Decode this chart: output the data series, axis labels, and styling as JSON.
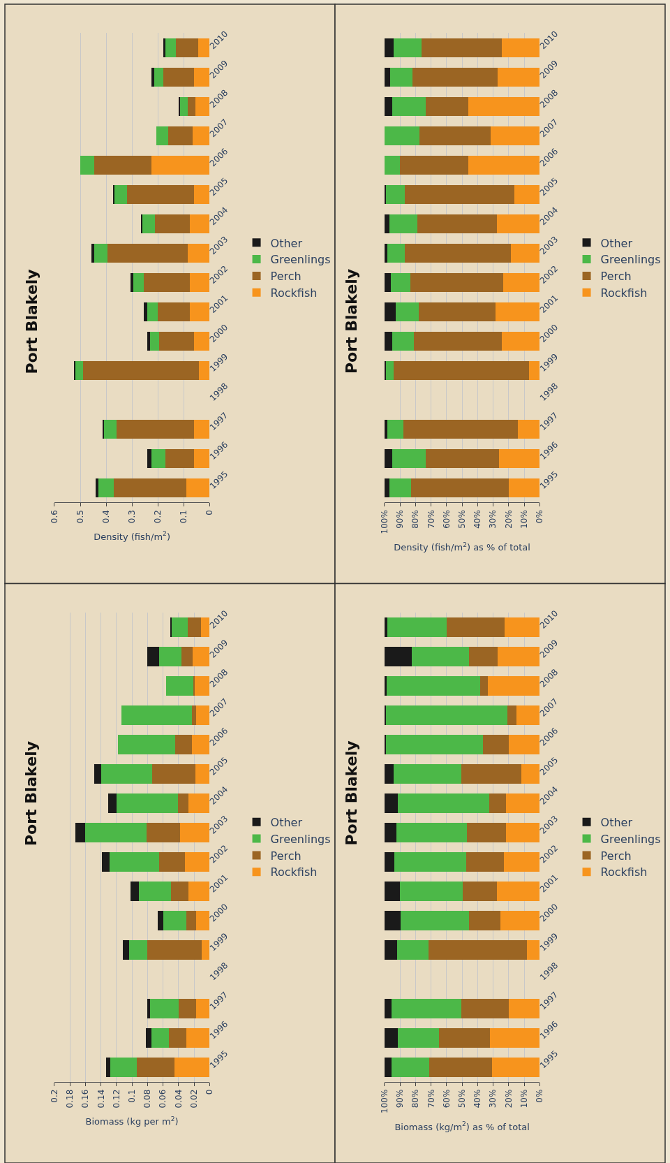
{
  "chart_data": [
    {
      "type": "bar",
      "title": "Port Blakely",
      "xlabel": "Density (fish/m$^{2}$)",
      "orientation": "horizontal",
      "stacked": true,
      "grid": "x",
      "legend": "right",
      "categories": [
        "2010",
        "2009",
        "2008",
        "2007",
        "2006",
        "2005",
        "2004",
        "2003",
        "2002",
        "2001",
        "2000",
        "1999",
        "1998",
        "1997",
        "1996",
        "1995"
      ],
      "xlim": [
        0.6,
        0
      ],
      "xticks": [
        0.6,
        0.5,
        0.4,
        0.3,
        0.2,
        0.1,
        0
      ],
      "series": [
        {
          "name": "Rockfish",
          "color": "#f7941d",
          "values": [
            0.045,
            0.06,
            0.055,
            0.065,
            0.225,
            0.06,
            0.075,
            0.085,
            0.075,
            0.075,
            0.06,
            0.04,
            null,
            0.06,
            0.06,
            0.09
          ]
        },
        {
          "name": "Perch",
          "color": "#9b6523",
          "values": [
            0.085,
            0.12,
            0.03,
            0.095,
            0.22,
            0.26,
            0.135,
            0.31,
            0.18,
            0.125,
            0.135,
            0.45,
            null,
            0.3,
            0.11,
            0.28
          ]
        },
        {
          "name": "Greenlings",
          "color": "#4cb848",
          "values": [
            0.04,
            0.035,
            0.03,
            0.045,
            0.055,
            0.05,
            0.05,
            0.05,
            0.04,
            0.04,
            0.035,
            0.03,
            null,
            0.05,
            0.055,
            0.06
          ]
        },
        {
          "name": "Other",
          "color": "#1a1a1a",
          "values": [
            0.008,
            0.01,
            0.003,
            0,
            0,
            0.001,
            0.005,
            0.012,
            0.01,
            0.015,
            0.01,
            0.003,
            null,
            0.005,
            0.015,
            0.01
          ]
        }
      ]
    },
    {
      "type": "bar",
      "title": "Port Blakely",
      "xlabel": "Density (fish/m$^{2}$) as % of total",
      "orientation": "horizontal",
      "stacked": true,
      "grid": "x",
      "legend": "right",
      "categories": [
        "2010",
        "2009",
        "2008",
        "2007",
        "2006",
        "2005",
        "2004",
        "2003",
        "2002",
        "2001",
        "2000",
        "1999",
        "1998",
        "1997",
        "1996",
        "1995"
      ],
      "xlim": [
        100,
        0
      ],
      "xticks": [
        {
          "value": 100,
          "label": "100%"
        },
        {
          "value": 90,
          "label": "90%"
        },
        {
          "value": 80,
          "label": "80%"
        },
        {
          "value": 70,
          "label": "70%"
        },
        {
          "value": 60,
          "label": "60%"
        },
        {
          "value": 50,
          "label": "50%"
        },
        {
          "value": 40,
          "label": "40%"
        },
        {
          "value": 30,
          "label": "30%"
        },
        {
          "value": 20,
          "label": "20%"
        },
        {
          "value": 10,
          "label": "10%"
        },
        {
          "value": 0,
          "label": "0%"
        }
      ],
      "series": [
        {
          "name": "Rockfish",
          "color": "#f7941d",
          "values": [
            24.5,
            27,
            46,
            31.5,
            46,
            16.5,
            27.5,
            18.5,
            23.5,
            28.5,
            24.5,
            7,
            null,
            14,
            26,
            20
          ]
        },
        {
          "name": "Perch",
          "color": "#9b6523",
          "values": [
            51.5,
            55,
            27.5,
            46,
            44,
            70.5,
            51.5,
            68.5,
            60,
            49.5,
            56.5,
            87,
            null,
            74,
            47.5,
            63
          ]
        },
        {
          "name": "Greenlings",
          "color": "#4cb848",
          "values": [
            18,
            14.5,
            21.5,
            22.5,
            10,
            12,
            18,
            11,
            12.5,
            15,
            14,
            5,
            null,
            10,
            21.5,
            14
          ]
        },
        {
          "name": "Other",
          "color": "#1a1a1a",
          "values": [
            6,
            3.5,
            5,
            0,
            0,
            1,
            3,
            2,
            4,
            7,
            5,
            1,
            null,
            2,
            5,
            3
          ]
        }
      ]
    },
    {
      "type": "bar",
      "title": "Port Blakely",
      "xlabel": "Biomass (kg per m$^{2}$)",
      "orientation": "horizontal",
      "stacked": true,
      "grid": "x",
      "legend": "right",
      "categories": [
        "2010",
        "2009",
        "2008",
        "2007",
        "2006",
        "2005",
        "2004",
        "2003",
        "2002",
        "2001",
        "2000",
        "1999",
        "1998",
        "1997",
        "1996",
        "1995"
      ],
      "xlim": [
        0.2,
        0
      ],
      "xticks": [
        0.2,
        0.18,
        0.16,
        0.14,
        0.12,
        0.1,
        0.08,
        0.06,
        0.04,
        0.02,
        0
      ],
      "series": [
        {
          "name": "Rockfish",
          "color": "#f7941d",
          "values": [
            0.011,
            0.022,
            0.02,
            0.017,
            0.023,
            0.018,
            0.027,
            0.038,
            0.032,
            0.027,
            0.017,
            0.01,
            null,
            0.017,
            0.03,
            0.045
          ]
        },
        {
          "name": "Perch",
          "color": "#9b6523",
          "values": [
            0.017,
            0.014,
            0.001,
            0.006,
            0.021,
            0.056,
            0.014,
            0.043,
            0.033,
            0.023,
            0.013,
            0.07,
            null,
            0.023,
            0.022,
            0.049
          ]
        },
        {
          "name": "Greenlings",
          "color": "#4cb848",
          "values": [
            0.021,
            0.029,
            0.035,
            0.091,
            0.074,
            0.066,
            0.079,
            0.079,
            0.064,
            0.041,
            0.03,
            0.024,
            null,
            0.037,
            0.023,
            0.034
          ]
        },
        {
          "name": "Other",
          "color": "#1a1a1a",
          "values": [
            0.001,
            0.015,
            0,
            0,
            0,
            0.009,
            0.011,
            0.013,
            0.01,
            0.011,
            0.007,
            0.008,
            null,
            0.003,
            0.007,
            0.005
          ]
        }
      ]
    },
    {
      "type": "bar",
      "title": "Port Blakely",
      "xlabel": "Biomass (kg/m$^{2}$) as % of total",
      "orientation": "horizontal",
      "stacked": true,
      "grid": "x",
      "legend": "right",
      "categories": [
        "2010",
        "2009",
        "2008",
        "2007",
        "2006",
        "2005",
        "2004",
        "2003",
        "2002",
        "2001",
        "2000",
        "1999",
        "1998",
        "1997",
        "1996",
        "1995"
      ],
      "xlim": [
        100,
        0
      ],
      "xticks": [
        {
          "value": 100,
          "label": "100%"
        },
        {
          "value": 90,
          "label": "90%"
        },
        {
          "value": 80,
          "label": "80%"
        },
        {
          "value": 70,
          "label": "70%"
        },
        {
          "value": 60,
          "label": "60%"
        },
        {
          "value": 50,
          "label": "50%"
        },
        {
          "value": 40,
          "label": "40%"
        },
        {
          "value": 30,
          "label": "30%"
        },
        {
          "value": 20,
          "label": "20%"
        },
        {
          "value": 10,
          "label": "10%"
        },
        {
          "value": 0,
          "label": "0%"
        }
      ],
      "series": [
        {
          "name": "Rockfish",
          "color": "#f7941d",
          "values": [
            22.5,
            27,
            33.5,
            15,
            20,
            12,
            21.5,
            21.5,
            23,
            27.5,
            25.5,
            8,
            null,
            20,
            32,
            30.5
          ]
        },
        {
          "name": "Perch",
          "color": "#9b6523",
          "values": [
            37.5,
            18.5,
            5,
            6,
            16.5,
            38.5,
            11,
            25.5,
            24.5,
            22,
            20,
            63.5,
            null,
            30.5,
            33,
            40.5
          ]
        },
        {
          "name": "Greenlings",
          "color": "#4cb848",
          "values": [
            38,
            37,
            60,
            78.5,
            63,
            43.5,
            59,
            45.5,
            46,
            40.5,
            44,
            20.5,
            null,
            45,
            26.5,
            24.5
          ]
        },
        {
          "name": "Other",
          "color": "#1a1a1a",
          "values": [
            2,
            17.5,
            1.5,
            0.5,
            0.5,
            6,
            8.5,
            7.5,
            6.5,
            10,
            10.5,
            8,
            null,
            4.5,
            8.5,
            4.5
          ]
        }
      ]
    }
  ]
}
